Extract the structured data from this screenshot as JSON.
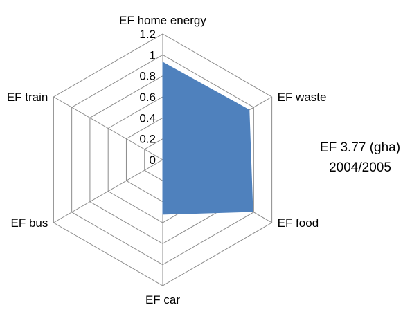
{
  "chart_data": {
    "type": "radar",
    "categories": [
      "EF home energy",
      "EF waste",
      "EF food",
      "EF car",
      "EF bus",
      "EF train"
    ],
    "series": [
      {
        "values": [
          0.93,
          0.95,
          0.99,
          0.52,
          0,
          0
        ]
      }
    ],
    "rlim": [
      0,
      1.2
    ],
    "ticks": [
      "0",
      "0.2",
      "0.4",
      "0.6",
      "0.8",
      "1",
      "1.2"
    ],
    "tick_values": [
      0,
      0.2,
      0.4,
      0.6,
      0.8,
      1,
      1.2
    ],
    "grid": true,
    "legend": "none",
    "series_color": "#4f81bd",
    "annotation": {
      "line1": "EF 3.77 (gha)",
      "line2": "2004/2005"
    }
  }
}
